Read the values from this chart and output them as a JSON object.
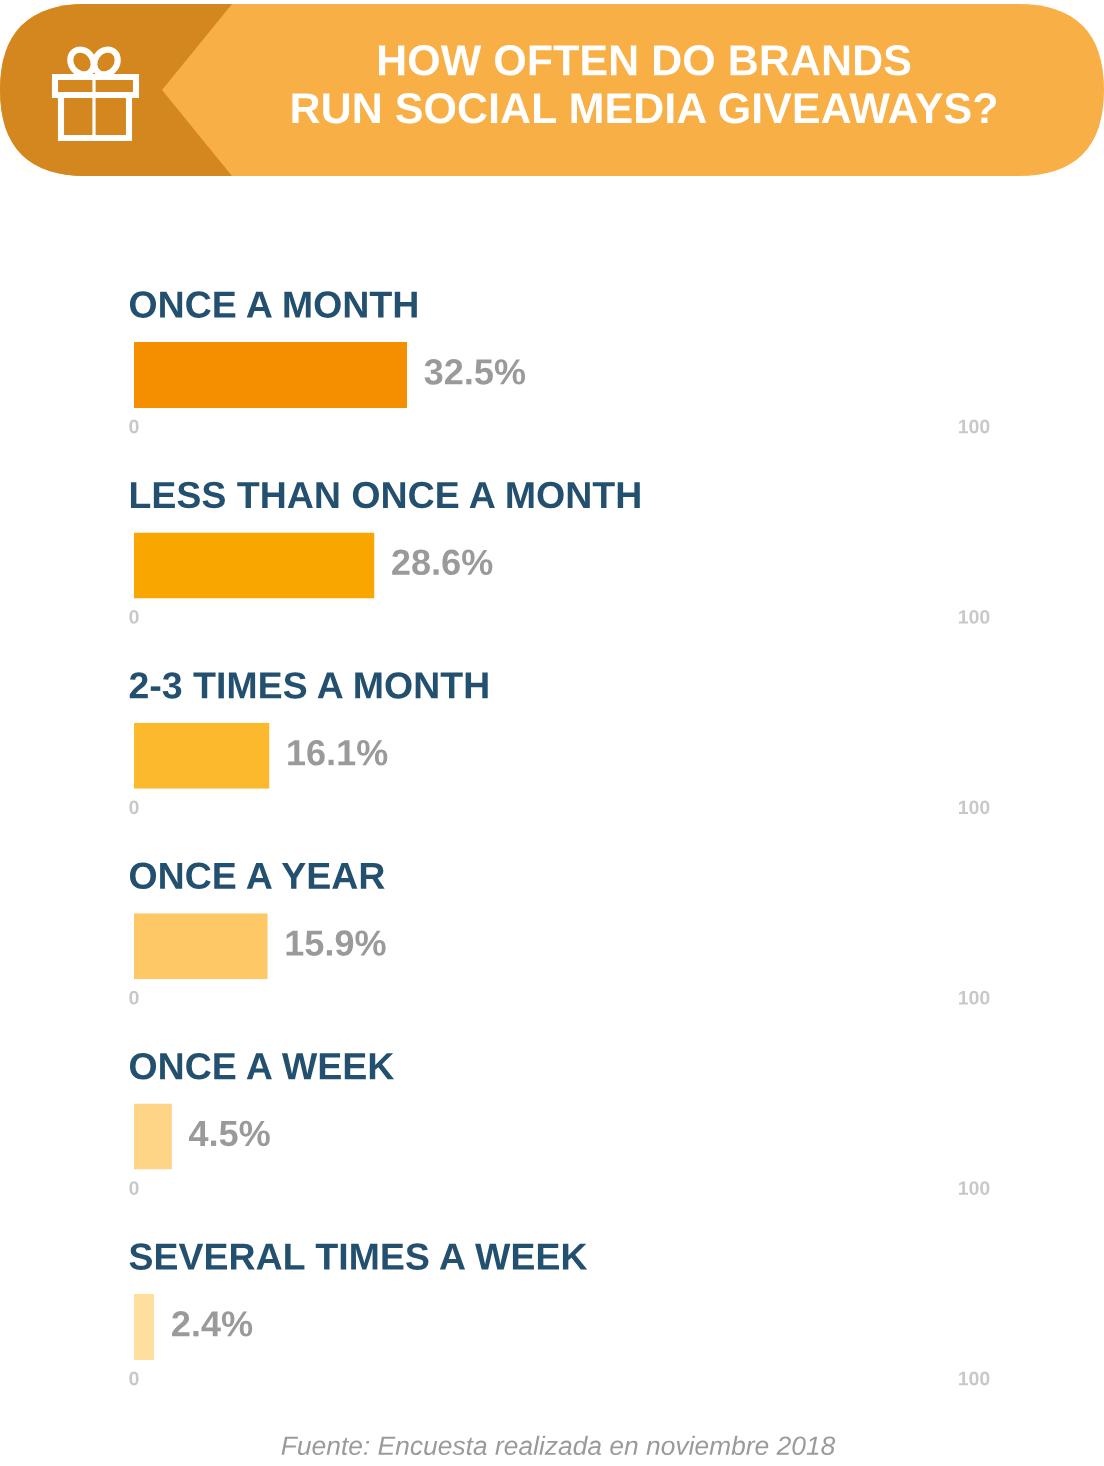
{
  "chart_data": [
    {
      "type": "bar",
      "orientation": "horizontal",
      "title": "HOW OFTEN DO BRANDS\nRUN SOCIAL MEDIA GIVEAWAYS?",
      "categories": [
        "ONCE A MONTH"
      ],
      "values": [
        32.5
      ],
      "colors": [
        "#f58f00"
      ],
      "value_labels": [
        "32.5%"
      ],
      "xlim": [
        0,
        100
      ],
      "xticks": [
        0,
        100
      ]
    },
    {
      "type": "bar",
      "orientation": "horizontal",
      "categories": [
        "LESS THAN ONCE A MONTH"
      ],
      "values": [
        28.6
      ],
      "colors": [
        "#f9a600"
      ],
      "value_labels": [
        "28.6%"
      ],
      "xlim": [
        0,
        100
      ],
      "xticks": [
        0,
        100
      ]
    },
    {
      "type": "bar",
      "orientation": "horizontal",
      "categories": [
        "2-3 TIMES A MONTH"
      ],
      "values": [
        16.1
      ],
      "colors": [
        "#fdb92e"
      ],
      "value_labels": [
        "16.1%"
      ],
      "xlim": [
        0,
        100
      ],
      "xticks": [
        0,
        100
      ]
    },
    {
      "type": "bar",
      "orientation": "horizontal",
      "categories": [
        "ONCE A YEAR"
      ],
      "values": [
        15.9
      ],
      "colors": [
        "#fec866"
      ],
      "value_labels": [
        "15.9%"
      ],
      "xlim": [
        0,
        100
      ],
      "xticks": [
        0,
        100
      ]
    },
    {
      "type": "bar",
      "orientation": "horizontal",
      "categories": [
        "ONCE A WEEK"
      ],
      "values": [
        4.5
      ],
      "colors": [
        "#fed486"
      ],
      "value_labels": [
        "4.5%"
      ],
      "xlim": [
        0,
        100
      ],
      "xticks": [
        0,
        100
      ]
    },
    {
      "type": "bar",
      "orientation": "horizontal",
      "categories": [
        "SEVERAL TIMES A WEEK"
      ],
      "values": [
        2.4
      ],
      "colors": [
        "#ffdea0"
      ],
      "value_labels": [
        "2.4%"
      ],
      "xlim": [
        0,
        100
      ],
      "xticks": [
        0,
        100
      ],
      "annotations": [
        "Fuente: Encuesta realizada en noviembre 2018"
      ]
    }
  ]
}
